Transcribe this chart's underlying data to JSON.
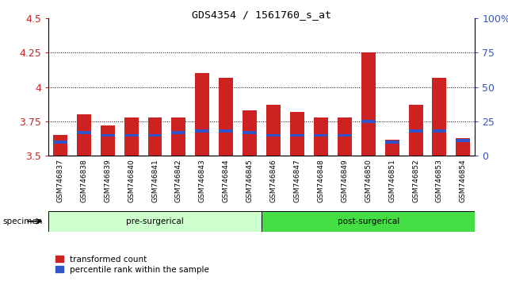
{
  "title": "GDS4354 / 1561760_s_at",
  "samples": [
    "GSM746837",
    "GSM746838",
    "GSM746839",
    "GSM746840",
    "GSM746841",
    "GSM746842",
    "GSM746843",
    "GSM746844",
    "GSM746845",
    "GSM746846",
    "GSM746847",
    "GSM746848",
    "GSM746849",
    "GSM746850",
    "GSM746851",
    "GSM746852",
    "GSM746853",
    "GSM746854"
  ],
  "red_values": [
    3.65,
    3.8,
    3.72,
    3.78,
    3.78,
    3.78,
    4.1,
    4.07,
    3.83,
    3.87,
    3.82,
    3.78,
    3.78,
    4.25,
    3.62,
    3.87,
    4.07,
    3.63
  ],
  "blue_values": [
    3.6,
    3.67,
    3.65,
    3.65,
    3.65,
    3.67,
    3.68,
    3.68,
    3.67,
    3.65,
    3.65,
    3.65,
    3.65,
    3.75,
    3.6,
    3.68,
    3.68,
    3.61
  ],
  "ymin": 3.5,
  "ymax": 4.5,
  "yticks": [
    3.5,
    3.75,
    4.0,
    4.25,
    4.5
  ],
  "ytick_labels": [
    "3.5",
    "3.75",
    "4",
    "4.25",
    "4.5"
  ],
  "grid_lines": [
    3.75,
    4.0,
    4.25
  ],
  "right_yticks": [
    0,
    25,
    50,
    75,
    100
  ],
  "right_ytick_labels": [
    "0",
    "25",
    "50",
    "75",
    "100%"
  ],
  "pre_surgical_count": 9,
  "post_surgical_count": 9,
  "bar_color_red": "#cc2222",
  "bar_color_blue": "#3355cc",
  "bar_width": 0.6,
  "background_plot": "#ffffff",
  "pre_surgical_color": "#ccffcc",
  "post_surgical_color": "#44dd44",
  "tick_label_size": 6.5,
  "legend_red": "transformed count",
  "legend_blue": "percentile rank within the sample",
  "specimen_label": "specimen",
  "group1_label": "pre-surgerical",
  "group2_label": "post-surgerical",
  "title_fontsize": 9.5,
  "axis_label_color_red": "#cc2222",
  "axis_label_color_blue": "#3355cc",
  "blue_bar_height": 0.022
}
